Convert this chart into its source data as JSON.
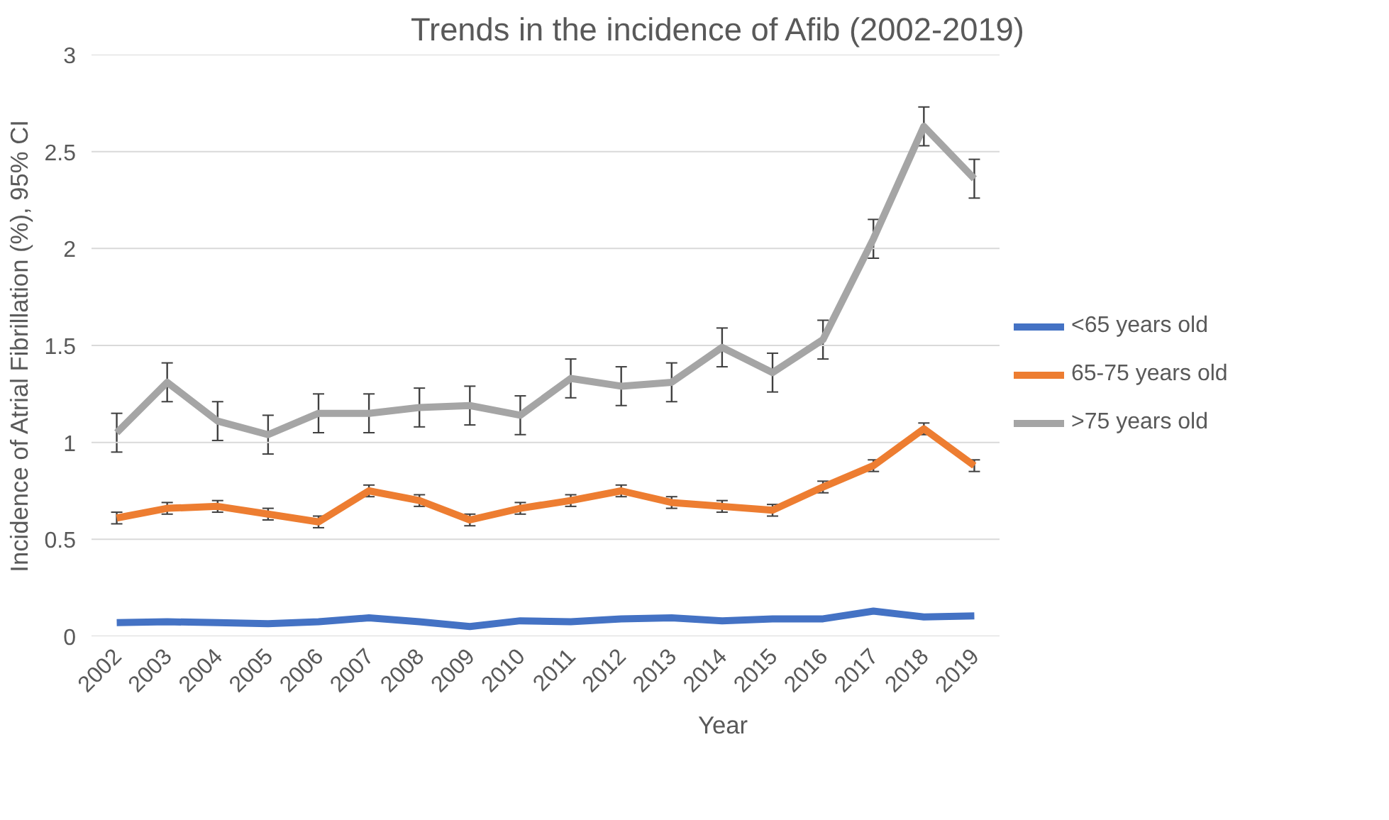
{
  "chart_data": {
    "type": "line",
    "title": "Trends in the incidence of Afib  (2002-2019)",
    "xlabel": "Year",
    "ylabel": "Incidence of Atrial Fibrillation (%), 95% CI",
    "categories": [
      "2002",
      "2003",
      "2004",
      "2005",
      "2006",
      "2007",
      "2008",
      "2009",
      "2010",
      "2011",
      "2012",
      "2013",
      "2014",
      "2015",
      "2016",
      "2017",
      "2018",
      "2019"
    ],
    "series": [
      {
        "name": "<65 years old",
        "color": "#4472c4",
        "values": [
          0.07,
          0.075,
          0.07,
          0.065,
          0.075,
          0.095,
          0.075,
          0.05,
          0.08,
          0.075,
          0.09,
          0.095,
          0.08,
          0.09,
          0.09,
          0.13,
          0.1,
          0.105
        ]
      },
      {
        "name": "65-75 years old",
        "color": "#ed7d31",
        "values": [
          0.61,
          0.66,
          0.67,
          0.63,
          0.59,
          0.75,
          0.7,
          0.6,
          0.66,
          0.7,
          0.75,
          0.69,
          0.67,
          0.65,
          0.77,
          0.88,
          1.07,
          0.88
        ],
        "errors": [
          0.03,
          0.03,
          0.03,
          0.03,
          0.03,
          0.03,
          0.03,
          0.03,
          0.03,
          0.03,
          0.03,
          0.03,
          0.03,
          0.03,
          0.03,
          0.03,
          0.03,
          0.03
        ]
      },
      {
        "name": ">75 years old",
        "color": "#a5a5a5",
        "values": [
          1.05,
          1.31,
          1.11,
          1.04,
          1.15,
          1.15,
          1.18,
          1.19,
          1.14,
          1.33,
          1.29,
          1.31,
          1.49,
          1.36,
          1.53,
          2.05,
          2.63,
          2.36
        ],
        "errors": [
          0.1,
          0.1,
          0.1,
          0.1,
          0.1,
          0.1,
          0.1,
          0.1,
          0.1,
          0.1,
          0.1,
          0.1,
          0.1,
          0.1,
          0.1,
          0.1,
          0.1,
          0.1
        ]
      }
    ],
    "ylim": [
      0,
      3
    ],
    "yticks": [
      0,
      0.5,
      1,
      1.5,
      2,
      2.5,
      3
    ],
    "grid": "y",
    "legend": "right",
    "marker": "none",
    "line_style": "solid"
  }
}
